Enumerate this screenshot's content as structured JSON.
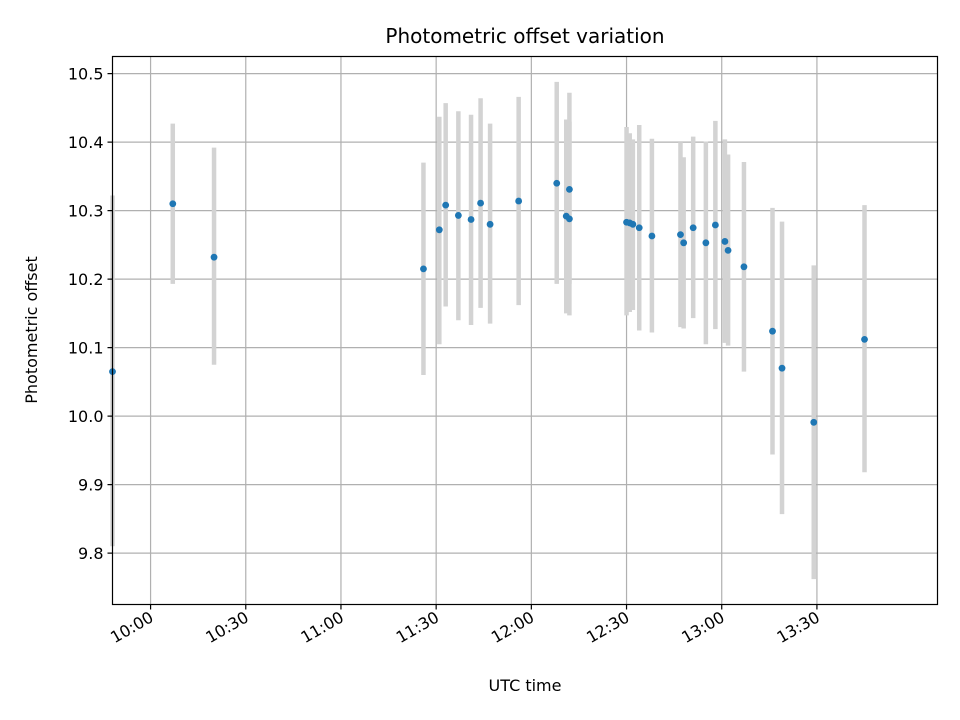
{
  "chart_data": {
    "type": "scatter",
    "title": "Photometric offset variation",
    "xlabel": "UTC time",
    "ylabel": "Photometric offset",
    "xlim": [
      "09:48",
      "14:08"
    ],
    "ylim": [
      9.725,
      10.525
    ],
    "grid": true,
    "x_ticks": [
      "10:00",
      "10:30",
      "11:00",
      "11:30",
      "12:00",
      "12:30",
      "13:00",
      "13:30"
    ],
    "y_ticks": [
      "9.8",
      "9.9",
      "10.0",
      "10.1",
      "10.2",
      "10.3",
      "10.4",
      "10.5"
    ],
    "colors": {
      "point": "#1f77b4",
      "errorbar": "#d3d3d3"
    },
    "points": [
      {
        "x": "09:48",
        "y": 10.065,
        "lo": 9.81,
        "hi": 10.322
      },
      {
        "x": "10:07",
        "y": 10.31,
        "lo": 10.193,
        "hi": 10.427
      },
      {
        "x": "10:20",
        "y": 10.232,
        "lo": 10.075,
        "hi": 10.392
      },
      {
        "x": "11:26",
        "y": 10.215,
        "lo": 10.06,
        "hi": 10.37
      },
      {
        "x": "11:31",
        "y": 10.272,
        "lo": 10.105,
        "hi": 10.437
      },
      {
        "x": "11:33",
        "y": 10.308,
        "lo": 10.16,
        "hi": 10.457
      },
      {
        "x": "11:37",
        "y": 10.293,
        "lo": 10.14,
        "hi": 10.445
      },
      {
        "x": "11:41",
        "y": 10.287,
        "lo": 10.133,
        "hi": 10.44
      },
      {
        "x": "11:44",
        "y": 10.311,
        "lo": 10.158,
        "hi": 10.464
      },
      {
        "x": "11:47",
        "y": 10.28,
        "lo": 10.135,
        "hi": 10.427
      },
      {
        "x": "11:56",
        "y": 10.314,
        "lo": 10.162,
        "hi": 10.466
      },
      {
        "x": "12:08",
        "y": 10.34,
        "lo": 10.193,
        "hi": 10.488
      },
      {
        "x": "12:11",
        "y": 10.292,
        "lo": 10.15,
        "hi": 10.433
      },
      {
        "x": "12:12",
        "y": 10.288,
        "lo": 10.147,
        "hi": 10.43
      },
      {
        "x": "12:12",
        "y": 10.331,
        "lo": 10.193,
        "hi": 10.472
      },
      {
        "x": "12:30",
        "y": 10.283,
        "lo": 10.147,
        "hi": 10.422
      },
      {
        "x": "12:31",
        "y": 10.282,
        "lo": 10.152,
        "hi": 10.413
      },
      {
        "x": "12:32",
        "y": 10.28,
        "lo": 10.155,
        "hi": 10.404
      },
      {
        "x": "12:34",
        "y": 10.275,
        "lo": 10.125,
        "hi": 10.425
      },
      {
        "x": "12:38",
        "y": 10.263,
        "lo": 10.122,
        "hi": 10.405
      },
      {
        "x": "12:47",
        "y": 10.265,
        "lo": 10.13,
        "hi": 10.4
      },
      {
        "x": "12:48",
        "y": 10.253,
        "lo": 10.128,
        "hi": 10.378
      },
      {
        "x": "12:51",
        "y": 10.275,
        "lo": 10.143,
        "hi": 10.408
      },
      {
        "x": "12:55",
        "y": 10.253,
        "lo": 10.105,
        "hi": 10.401
      },
      {
        "x": "12:58",
        "y": 10.279,
        "lo": 10.127,
        "hi": 10.431
      },
      {
        "x": "13:01",
        "y": 10.255,
        "lo": 10.107,
        "hi": 10.404
      },
      {
        "x": "13:02",
        "y": 10.242,
        "lo": 10.103,
        "hi": 10.382
      },
      {
        "x": "13:07",
        "y": 10.218,
        "lo": 10.065,
        "hi": 10.371
      },
      {
        "x": "13:16",
        "y": 10.124,
        "lo": 9.944,
        "hi": 10.304
      },
      {
        "x": "13:19",
        "y": 10.07,
        "lo": 9.857,
        "hi": 10.284
      },
      {
        "x": "13:29",
        "y": 9.991,
        "lo": 9.762,
        "hi": 10.22
      },
      {
        "x": "13:45",
        "y": 10.112,
        "lo": 9.918,
        "hi": 10.308
      }
    ]
  }
}
